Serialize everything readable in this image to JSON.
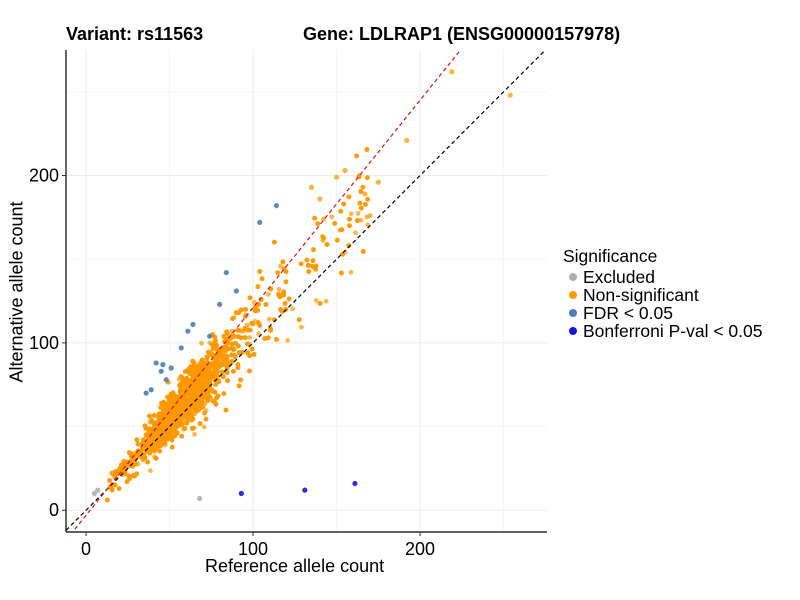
{
  "titles": {
    "variant": "Variant: rs11563",
    "gene": "Gene: LDLRAP1 (ENSG00000157978)"
  },
  "chart_data": {
    "type": "scatter",
    "xlabel": "Reference allele count",
    "ylabel": "Alternative allele count",
    "xlim": [
      -12,
      276
    ],
    "ylim": [
      -13,
      275
    ],
    "x_ticks": [
      0,
      100,
      200
    ],
    "y_ticks": [
      0,
      100,
      200
    ],
    "grid": true,
    "legend_position": "right",
    "reference_lines": [
      {
        "name": "identity-line",
        "color": "#000000",
        "slope": 1,
        "intercept": 0,
        "dashed": true
      },
      {
        "name": "fitted-line",
        "color": "#dd1111",
        "slope": 1.24,
        "intercept": -3,
        "dashed": true
      }
    ],
    "legend": {
      "title": "Significance",
      "items": [
        {
          "label": "Excluded",
          "color": "#b0b0b0"
        },
        {
          "label": "Non-significant",
          "color": "#ff9900"
        },
        {
          "label": "FDR < 0.05",
          "color": "#4a7fb5"
        },
        {
          "label": "Bonferroni P-val < 0.05",
          "color": "#1414e6"
        }
      ]
    },
    "series": [
      {
        "name": "Excluded",
        "color": "#b0b0b0",
        "points": [
          [
            5,
            10
          ],
          [
            7,
            12
          ],
          [
            68,
            7
          ]
        ]
      },
      {
        "name": "Non-significant",
        "color": "#ff9900",
        "generated_count": 2600,
        "points": [
          [
            219,
            262
          ],
          [
            254,
            248
          ],
          [
            192,
            221
          ],
          [
            155,
            203
          ],
          [
            150,
            199
          ],
          [
            175,
            196
          ],
          [
            167,
            189
          ],
          [
            170,
            176
          ],
          [
            135,
            193
          ],
          [
            140,
            186
          ]
        ]
      },
      {
        "name": "FDR < 0.05",
        "color": "#4a7fb5",
        "points": [
          [
            104,
            172
          ],
          [
            114,
            182
          ],
          [
            84,
            142
          ],
          [
            90,
            131
          ],
          [
            80,
            123
          ],
          [
            61,
            107
          ],
          [
            74,
            104
          ],
          [
            57,
            97
          ],
          [
            42,
            88
          ],
          [
            46,
            87
          ],
          [
            45,
            83
          ],
          [
            51,
            85
          ],
          [
            48,
            78
          ],
          [
            39,
            72
          ],
          [
            36,
            70
          ],
          [
            64,
            111
          ]
        ]
      },
      {
        "name": "Bonferroni P-val < 0.05",
        "color": "#1414e6",
        "points": [
          [
            93,
            10
          ],
          [
            131,
            12
          ],
          [
            161,
            16
          ]
        ]
      }
    ]
  }
}
